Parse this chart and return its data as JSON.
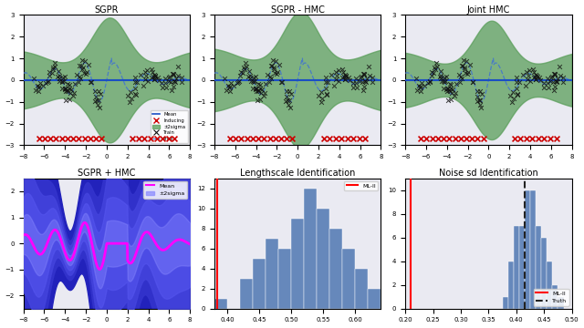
{
  "title_sgpr": "SGPR",
  "title_sgpr_hmc": "SGPR - HMC",
  "title_joint_hmc": "Joint HMC",
  "title_sgpr_plus_hmc": "SGPR + HMC",
  "title_lengthscale": "Lengthscale Identification",
  "title_noise": "Noise sd Identification",
  "x_range": [
    -8,
    8
  ],
  "bg_color": "#eaeaf2",
  "green_fill": "#5a9e5a",
  "blue_line": "#1a4fc4",
  "blue_dashed": "#4477cc",
  "magenta_line": "#ff00ff",
  "hist_color": "#6688bb",
  "red_line": "#ff0000",
  "black_dashed": "#222222",
  "inducing_color": "#cc0000",
  "train_color": "#111111",
  "ls_ml_line": 0.385,
  "ls_xlim": [
    0.38,
    0.63
  ],
  "ls_ylim": [
    0,
    13
  ],
  "noise_ml_line": 0.21,
  "noise_truth_line": 0.415,
  "noise_xlim": [
    0.2,
    0.5
  ],
  "noise_ylim": [
    0,
    11
  ]
}
